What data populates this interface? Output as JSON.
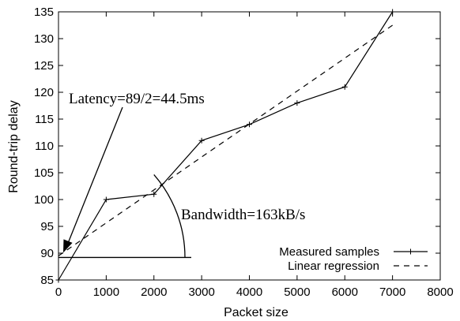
{
  "chart_data": {
    "type": "line",
    "xlabel": "Packet size",
    "ylabel": "Round-trip delay",
    "xlim": [
      0,
      8000
    ],
    "ylim": [
      85,
      135
    ],
    "xticks": [
      0,
      1000,
      2000,
      3000,
      4000,
      5000,
      6000,
      7000,
      8000
    ],
    "yticks": [
      85,
      90,
      95,
      100,
      105,
      110,
      115,
      120,
      125,
      130,
      135
    ],
    "grid": false,
    "legend_position": "bottom-right",
    "series": [
      {
        "name": "Measured samples",
        "style": "solid-with-markers",
        "x": [
          0,
          1000,
          2000,
          3000,
          4000,
          5000,
          6000,
          7000
        ],
        "y": [
          85,
          100,
          101,
          111,
          114,
          118,
          121,
          135
        ]
      },
      {
        "name": "Linear regression",
        "style": "dashed",
        "x": [
          0,
          7000
        ],
        "y": [
          89.5,
          132.5
        ]
      }
    ],
    "annotations": {
      "latency_label": "Latency=89/2=44.5ms",
      "latency_point": [
        0,
        89.5
      ],
      "bandwidth_label": "Bandwidth=163kB/s",
      "bandwidth_baseline_y": 89.2,
      "bandwidth_baseline_x_end": 2700
    },
    "colors": {
      "line": "#000000",
      "background": "#ffffff"
    }
  }
}
